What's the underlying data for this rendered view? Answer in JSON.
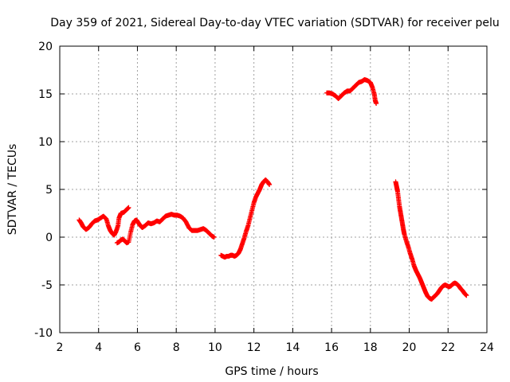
{
  "chart_data": {
    "type": "scatter",
    "title": "Day 359 of 2021, Sidereal Day-to-day VTEC variation (SDTVAR) for receiver pelu",
    "xlabel": "GPS time / hours",
    "ylabel": "SDTVAR / TECUs",
    "xlim": [
      2,
      24
    ],
    "ylim": [
      -10,
      20
    ],
    "x_ticks": [
      "2",
      "4",
      "6",
      "8",
      "10",
      "12",
      "14",
      "16",
      "18",
      "20",
      "22",
      "24"
    ],
    "y_ticks": [
      "-10",
      "-5",
      "0",
      "5",
      "10",
      "15",
      "20"
    ],
    "grid": true,
    "marker": "plus",
    "color": "#ff0000",
    "series": [
      {
        "name": "seg1",
        "points": [
          [
            3.0,
            1.8
          ],
          [
            3.1,
            1.5
          ],
          [
            3.2,
            1.1
          ],
          [
            3.35,
            0.8
          ],
          [
            3.5,
            1.0
          ],
          [
            3.65,
            1.4
          ],
          [
            3.8,
            1.7
          ],
          [
            3.95,
            1.8
          ],
          [
            4.1,
            2.0
          ],
          [
            4.25,
            2.2
          ],
          [
            4.4,
            1.9
          ],
          [
            4.5,
            1.2
          ],
          [
            4.6,
            0.7
          ],
          [
            4.7,
            0.4
          ],
          [
            4.8,
            0.2
          ],
          [
            4.9,
            0.6
          ],
          [
            5.0,
            1.2
          ],
          [
            5.05,
            2.0
          ],
          [
            5.15,
            2.5
          ],
          [
            5.3,
            2.6
          ],
          [
            5.45,
            2.9
          ],
          [
            5.55,
            3.1
          ]
        ]
      },
      {
        "name": "seg2",
        "points": [
          [
            4.95,
            -0.6
          ],
          [
            5.05,
            -0.5
          ],
          [
            5.15,
            -0.3
          ],
          [
            5.25,
            -0.2
          ],
          [
            5.35,
            -0.4
          ],
          [
            5.45,
            -0.6
          ],
          [
            5.55,
            -0.5
          ],
          [
            5.65,
            0.5
          ],
          [
            5.75,
            1.3
          ],
          [
            5.85,
            1.7
          ],
          [
            5.95,
            1.8
          ],
          [
            6.05,
            1.5
          ],
          [
            6.15,
            1.2
          ],
          [
            6.25,
            1.0
          ],
          [
            6.4,
            1.2
          ],
          [
            6.55,
            1.5
          ],
          [
            6.7,
            1.4
          ],
          [
            6.85,
            1.5
          ],
          [
            7.0,
            1.7
          ],
          [
            7.15,
            1.6
          ],
          [
            7.3,
            1.9
          ],
          [
            7.45,
            2.2
          ],
          [
            7.6,
            2.3
          ],
          [
            7.75,
            2.4
          ],
          [
            7.9,
            2.3
          ],
          [
            8.05,
            2.3
          ],
          [
            8.2,
            2.2
          ],
          [
            8.35,
            2.0
          ],
          [
            8.5,
            1.6
          ],
          [
            8.65,
            1.0
          ],
          [
            8.8,
            0.7
          ],
          [
            8.95,
            0.7
          ],
          [
            9.1,
            0.7
          ],
          [
            9.25,
            0.8
          ],
          [
            9.4,
            0.9
          ],
          [
            9.55,
            0.7
          ],
          [
            9.7,
            0.4
          ],
          [
            9.85,
            0.1
          ],
          [
            9.95,
            0.0
          ]
        ]
      },
      {
        "name": "seg3",
        "points": [
          [
            10.3,
            -1.9
          ],
          [
            10.4,
            -2.0
          ],
          [
            10.5,
            -2.1
          ],
          [
            10.6,
            -2.0
          ],
          [
            10.7,
            -2.0
          ],
          [
            10.8,
            -1.9
          ],
          [
            10.9,
            -1.9
          ],
          [
            11.0,
            -2.0
          ],
          [
            11.1,
            -1.9
          ],
          [
            11.2,
            -1.7
          ],
          [
            11.3,
            -1.3
          ],
          [
            11.4,
            -0.7
          ],
          [
            11.5,
            -0.1
          ],
          [
            11.6,
            0.6
          ],
          [
            11.7,
            1.2
          ],
          [
            11.8,
            2.0
          ],
          [
            11.9,
            2.8
          ],
          [
            12.0,
            3.6
          ],
          [
            12.1,
            4.2
          ],
          [
            12.2,
            4.6
          ],
          [
            12.3,
            5.0
          ],
          [
            12.4,
            5.5
          ],
          [
            12.5,
            5.8
          ],
          [
            12.6,
            6.0
          ],
          [
            12.7,
            5.8
          ],
          [
            12.8,
            5.5
          ]
        ]
      },
      {
        "name": "seg4",
        "points": [
          [
            15.75,
            15.1
          ],
          [
            15.9,
            15.1
          ],
          [
            16.05,
            15.0
          ],
          [
            16.2,
            14.8
          ],
          [
            16.35,
            14.5
          ],
          [
            16.5,
            14.8
          ],
          [
            16.65,
            15.1
          ],
          [
            16.8,
            15.3
          ],
          [
            16.95,
            15.3
          ],
          [
            17.1,
            15.6
          ],
          [
            17.25,
            15.9
          ],
          [
            17.4,
            16.2
          ],
          [
            17.55,
            16.3
          ],
          [
            17.7,
            16.5
          ],
          [
            17.85,
            16.4
          ],
          [
            18.0,
            16.2
          ],
          [
            18.1,
            15.7
          ],
          [
            18.2,
            15.0
          ],
          [
            18.25,
            14.3
          ],
          [
            18.3,
            14.0
          ]
        ]
      },
      {
        "name": "seg5",
        "points": [
          [
            19.3,
            5.8
          ],
          [
            19.35,
            5.3
          ],
          [
            19.4,
            4.8
          ],
          [
            19.45,
            4.0
          ],
          [
            19.5,
            3.2
          ],
          [
            19.55,
            2.6
          ],
          [
            19.6,
            2.0
          ],
          [
            19.65,
            1.4
          ],
          [
            19.7,
            0.8
          ],
          [
            19.75,
            0.3
          ],
          [
            19.85,
            -0.4
          ],
          [
            19.95,
            -1.0
          ],
          [
            20.05,
            -1.7
          ],
          [
            20.15,
            -2.3
          ],
          [
            20.25,
            -3.0
          ],
          [
            20.35,
            -3.5
          ],
          [
            20.45,
            -3.9
          ],
          [
            20.55,
            -4.3
          ],
          [
            20.65,
            -4.8
          ],
          [
            20.75,
            -5.3
          ],
          [
            20.85,
            -5.8
          ],
          [
            20.95,
            -6.2
          ],
          [
            21.05,
            -6.4
          ],
          [
            21.15,
            -6.5
          ],
          [
            21.25,
            -6.3
          ],
          [
            21.35,
            -6.1
          ],
          [
            21.45,
            -5.9
          ],
          [
            21.55,
            -5.6
          ],
          [
            21.65,
            -5.3
          ],
          [
            21.75,
            -5.1
          ],
          [
            21.85,
            -5.0
          ],
          [
            21.95,
            -5.1
          ],
          [
            22.05,
            -5.2
          ],
          [
            22.15,
            -5.1
          ],
          [
            22.25,
            -4.9
          ],
          [
            22.35,
            -4.8
          ],
          [
            22.45,
            -4.9
          ],
          [
            22.55,
            -5.1
          ],
          [
            22.65,
            -5.4
          ],
          [
            22.75,
            -5.6
          ],
          [
            22.85,
            -5.9
          ],
          [
            22.95,
            -6.1
          ]
        ]
      }
    ]
  }
}
